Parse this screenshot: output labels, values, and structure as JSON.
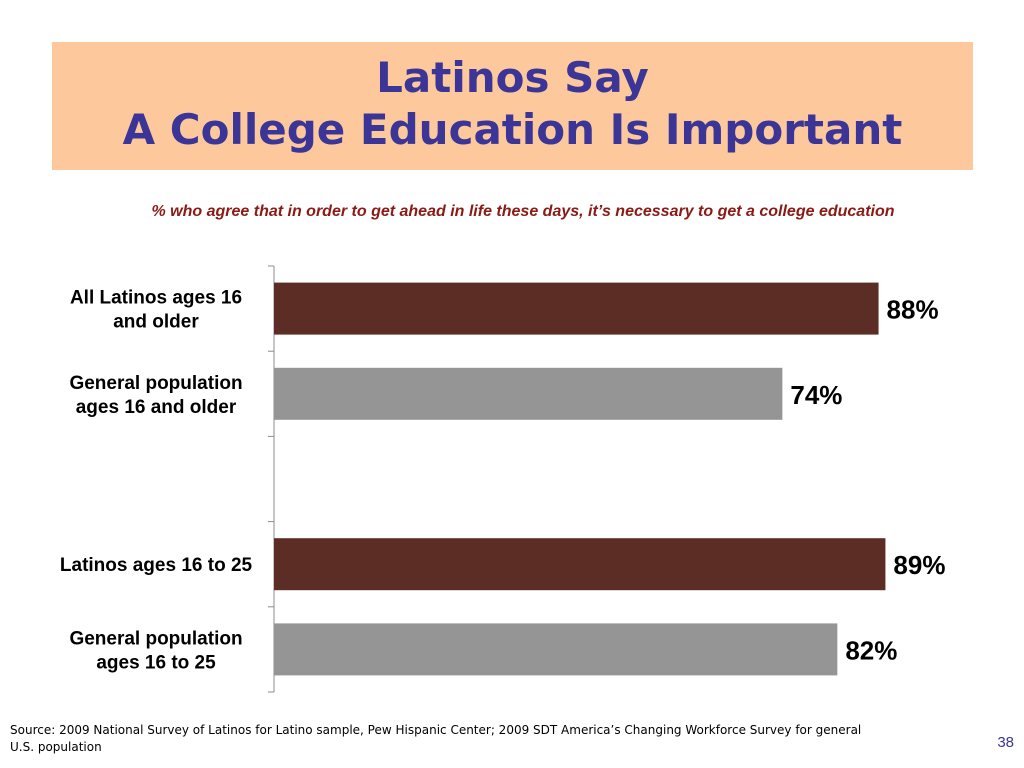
{
  "slide": {
    "title_line1": "Latinos Say",
    "title_line2": "A College Education Is Important",
    "subtitle": "% who agree that in order to get ahead in life these days, it’s necessary to get a college education",
    "source": "Source: 2009 National Survey of Latinos for Latino sample, Pew Hispanic Center; 2009 SDT America’s Changing Workforce Survey for general U.S. population",
    "page_number": "38"
  },
  "chart_data": {
    "type": "bar",
    "orientation": "horizontal",
    "categories": [
      [
        "All Latinos ages 16",
        "and older"
      ],
      [
        "General population",
        "ages 16 and older"
      ],
      [],
      [
        "Latinos ages 16 to 25"
      ],
      [
        "General population",
        "ages 16 to 25"
      ]
    ],
    "values": [
      88,
      74,
      null,
      89,
      82
    ],
    "value_labels": [
      "88%",
      "74%",
      "",
      "89%",
      "82%"
    ],
    "bar_colors": [
      "#5c2d24",
      "#959595",
      null,
      "#5c2d24",
      "#959595"
    ],
    "xlim": [
      0,
      100
    ],
    "grid": false,
    "legend": "none"
  }
}
